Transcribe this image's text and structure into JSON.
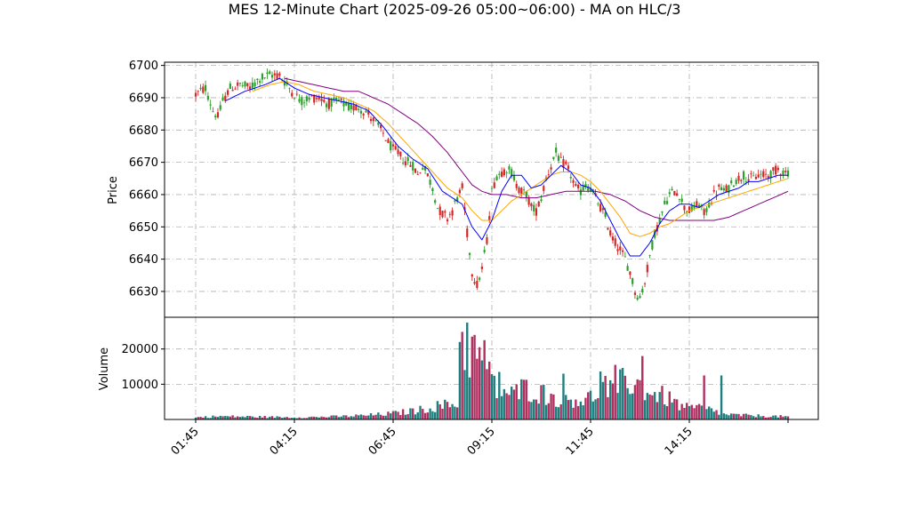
{
  "chart_data": {
    "type": "candlestick",
    "title": "MES 12-Minute Chart (2025-09-26 05:00~06:00) - MA on HLC/3",
    "price_panel": {
      "ylabel": "Price",
      "ylim": [
        6622,
        6701
      ],
      "yticks": [
        6630,
        6640,
        6650,
        6660,
        6670,
        6680,
        6690,
        6700
      ],
      "grid": true
    },
    "volume_panel": {
      "ylabel": "Volume",
      "ylim": [
        0,
        29000
      ],
      "yticks": [
        10000,
        20000
      ],
      "grid": true
    },
    "x_axis": {
      "tick_labels": [
        "01:45",
        "04:15",
        "06:45",
        "09:15",
        "11:45",
        "14:15"
      ],
      "label_rotation": 45
    },
    "colors": {
      "up_candle": "#2ca02c",
      "down_candle": "#d62728",
      "ma_fast": "#0000ff",
      "ma_mid": "#ffa500",
      "ma_slow": "#800080",
      "volume_up": "#1f7f7f",
      "volume_down": "#b03060",
      "grid": "#b0b0b0"
    },
    "price_path": [
      [
        0,
        6691
      ],
      [
        4,
        6693
      ],
      [
        7,
        6686
      ],
      [
        9,
        6684
      ],
      [
        11,
        6689
      ],
      [
        14,
        6693
      ],
      [
        18,
        6694
      ],
      [
        22,
        6693
      ],
      [
        26,
        6696
      ],
      [
        30,
        6697
      ],
      [
        34,
        6697
      ],
      [
        37,
        6694
      ],
      [
        40,
        6691
      ],
      [
        43,
        6689
      ],
      [
        46,
        6690
      ],
      [
        50,
        6690
      ],
      [
        54,
        6688
      ],
      [
        58,
        6689
      ],
      [
        62,
        6687
      ],
      [
        66,
        6687
      ],
      [
        70,
        6685
      ],
      [
        72,
        6683
      ],
      [
        74,
        6681
      ],
      [
        76,
        6679
      ],
      [
        78,
        6676
      ],
      [
        80,
        6674
      ],
      [
        82,
        6673
      ],
      [
        84,
        6671
      ],
      [
        86,
        6670
      ],
      [
        88,
        6669
      ],
      [
        90,
        6666
      ],
      [
        92,
        6669
      ],
      [
        94,
        6666
      ],
      [
        96,
        6662
      ],
      [
        98,
        6656
      ],
      [
        100,
        6654
      ],
      [
        102,
        6653
      ],
      [
        104,
        6655
      ],
      [
        106,
        6659
      ],
      [
        108,
        6662
      ],
      [
        110,
        6648
      ],
      [
        112,
        6636
      ],
      [
        114,
        6632
      ],
      [
        116,
        6637
      ],
      [
        118,
        6646
      ],
      [
        120,
        6661
      ],
      [
        122,
        6666
      ],
      [
        124,
        6667
      ],
      [
        126,
        6668
      ],
      [
        128,
        6667
      ],
      [
        130,
        6663
      ],
      [
        132,
        6661
      ],
      [
        134,
        6660
      ],
      [
        136,
        6656
      ],
      [
        138,
        6655
      ],
      [
        140,
        6659
      ],
      [
        142,
        6665
      ],
      [
        144,
        6669
      ],
      [
        146,
        6673
      ],
      [
        148,
        6670
      ],
      [
        150,
        6669
      ],
      [
        152,
        6666
      ],
      [
        154,
        6662
      ],
      [
        156,
        6661
      ],
      [
        158,
        6663
      ],
      [
        160,
        6662
      ],
      [
        162,
        6659
      ],
      [
        164,
        6656
      ],
      [
        166,
        6653
      ],
      [
        168,
        6648
      ],
      [
        170,
        6645
      ],
      [
        172,
        6643
      ],
      [
        174,
        6640
      ],
      [
        176,
        6636
      ],
      [
        178,
        6630
      ],
      [
        180,
        6628
      ],
      [
        182,
        6633
      ],
      [
        184,
        6641
      ],
      [
        186,
        6648
      ],
      [
        188,
        6652
      ],
      [
        190,
        6657
      ],
      [
        192,
        6660
      ],
      [
        194,
        6661
      ],
      [
        196,
        6660
      ],
      [
        198,
        6656
      ],
      [
        200,
        6655
      ],
      [
        202,
        6656
      ],
      [
        204,
        6657
      ],
      [
        206,
        6654
      ],
      [
        208,
        6657
      ],
      [
        210,
        6660
      ],
      [
        212,
        6662
      ],
      [
        214,
        6661
      ],
      [
        216,
        6662
      ],
      [
        218,
        6664
      ],
      [
        220,
        6665
      ],
      [
        222,
        6666
      ],
      [
        224,
        6665
      ],
      [
        226,
        6665
      ],
      [
        228,
        6666
      ],
      [
        230,
        6666
      ],
      [
        232,
        6666
      ],
      [
        234,
        6667
      ],
      [
        236,
        6668
      ],
      [
        238,
        6667
      ],
      [
        240,
        6667
      ]
    ],
    "ma_fast_path": [
      [
        12,
        6689
      ],
      [
        20,
        6692
      ],
      [
        28,
        6694
      ],
      [
        34,
        6696
      ],
      [
        40,
        6693
      ],
      [
        46,
        6691
      ],
      [
        52,
        6690
      ],
      [
        58,
        6689
      ],
      [
        64,
        6688
      ],
      [
        70,
        6686
      ],
      [
        76,
        6681
      ],
      [
        82,
        6675
      ],
      [
        88,
        6671
      ],
      [
        94,
        6668
      ],
      [
        100,
        6661
      ],
      [
        104,
        6659
      ],
      [
        108,
        6657
      ],
      [
        112,
        6650
      ],
      [
        116,
        6646
      ],
      [
        120,
        6652
      ],
      [
        124,
        6661
      ],
      [
        128,
        6666
      ],
      [
        132,
        6666
      ],
      [
        136,
        6662
      ],
      [
        140,
        6663
      ],
      [
        144,
        6666
      ],
      [
        148,
        6669
      ],
      [
        152,
        6667
      ],
      [
        156,
        6663
      ],
      [
        160,
        6662
      ],
      [
        164,
        6658
      ],
      [
        168,
        6652
      ],
      [
        172,
        6646
      ],
      [
        176,
        6641
      ],
      [
        180,
        6641
      ],
      [
        184,
        6645
      ],
      [
        188,
        6651
      ],
      [
        192,
        6655
      ],
      [
        196,
        6657
      ],
      [
        200,
        6657
      ],
      [
        204,
        6656
      ],
      [
        208,
        6658
      ],
      [
        212,
        6660
      ],
      [
        216,
        6661
      ],
      [
        220,
        6662
      ],
      [
        224,
        6664
      ],
      [
        228,
        6664
      ],
      [
        232,
        6665
      ],
      [
        236,
        6666
      ],
      [
        240,
        6666
      ]
    ],
    "ma_mid_path": [
      [
        23,
        6692
      ],
      [
        30,
        6694
      ],
      [
        36,
        6695
      ],
      [
        42,
        6694
      ],
      [
        48,
        6692
      ],
      [
        54,
        6691
      ],
      [
        60,
        6690
      ],
      [
        66,
        6688
      ],
      [
        72,
        6686
      ],
      [
        78,
        6682
      ],
      [
        84,
        6677
      ],
      [
        90,
        6672
      ],
      [
        96,
        6667
      ],
      [
        102,
        6662
      ],
      [
        108,
        6659
      ],
      [
        112,
        6655
      ],
      [
        116,
        6652
      ],
      [
        120,
        6652
      ],
      [
        124,
        6655
      ],
      [
        128,
        6658
      ],
      [
        132,
        6660
      ],
      [
        136,
        6662
      ],
      [
        140,
        6664
      ],
      [
        144,
        6666
      ],
      [
        148,
        6667
      ],
      [
        152,
        6667
      ],
      [
        156,
        6666
      ],
      [
        160,
        6664
      ],
      [
        164,
        6661
      ],
      [
        168,
        6657
      ],
      [
        172,
        6653
      ],
      [
        176,
        6648
      ],
      [
        180,
        6647
      ],
      [
        184,
        6648
      ],
      [
        188,
        6650
      ],
      [
        192,
        6651
      ],
      [
        196,
        6653
      ],
      [
        200,
        6655
      ],
      [
        204,
        6656
      ],
      [
        208,
        6657
      ],
      [
        212,
        6658
      ],
      [
        216,
        6659
      ],
      [
        220,
        6660
      ],
      [
        224,
        6661
      ],
      [
        228,
        6662
      ],
      [
        232,
        6663
      ],
      [
        236,
        6664
      ],
      [
        240,
        6665
      ]
    ],
    "ma_slow_path": [
      [
        36,
        6696
      ],
      [
        42,
        6695
      ],
      [
        48,
        6694
      ],
      [
        54,
        6693
      ],
      [
        60,
        6692
      ],
      [
        66,
        6692
      ],
      [
        72,
        6690
      ],
      [
        78,
        6688
      ],
      [
        84,
        6685
      ],
      [
        90,
        6682
      ],
      [
        96,
        6678
      ],
      [
        102,
        6673
      ],
      [
        108,
        6667
      ],
      [
        112,
        6663
      ],
      [
        116,
        6661
      ],
      [
        120,
        6660
      ],
      [
        126,
        6660
      ],
      [
        132,
        6659
      ],
      [
        138,
        6659
      ],
      [
        144,
        6660
      ],
      [
        150,
        6661
      ],
      [
        156,
        6661
      ],
      [
        162,
        6661
      ],
      [
        168,
        6660
      ],
      [
        174,
        6658
      ],
      [
        180,
        6655
      ],
      [
        186,
        6653
      ],
      [
        192,
        6652
      ],
      [
        198,
        6652
      ],
      [
        204,
        6652
      ],
      [
        210,
        6652
      ],
      [
        216,
        6653
      ],
      [
        222,
        6655
      ],
      [
        228,
        6657
      ],
      [
        234,
        6659
      ],
      [
        240,
        6661
      ]
    ],
    "volume_profile": [
      [
        0,
        600
      ],
      [
        10,
        900
      ],
      [
        20,
        800
      ],
      [
        30,
        700
      ],
      [
        40,
        600
      ],
      [
        50,
        700
      ],
      [
        60,
        900
      ],
      [
        70,
        1200
      ],
      [
        80,
        1700
      ],
      [
        90,
        2600
      ],
      [
        98,
        3800
      ],
      [
        104,
        4200
      ],
      [
        106,
        4800
      ],
      [
        107,
        22000
      ],
      [
        110,
        20000
      ],
      [
        114,
        17000
      ],
      [
        118,
        13000
      ],
      [
        122,
        8500
      ],
      [
        128,
        7000
      ],
      [
        134,
        9000
      ],
      [
        140,
        7500
      ],
      [
        146,
        6000
      ],
      [
        152,
        6000
      ],
      [
        158,
        5500
      ],
      [
        162,
        7000
      ],
      [
        164,
        11000
      ],
      [
        168,
        8000
      ],
      [
        172,
        10000
      ],
      [
        176,
        11000
      ],
      [
        180,
        9500
      ],
      [
        186,
        7000
      ],
      [
        190,
        6500
      ],
      [
        196,
        4000
      ],
      [
        200,
        3000
      ],
      [
        204,
        3500
      ],
      [
        210,
        2500
      ],
      [
        214,
        1500
      ],
      [
        220,
        1200
      ],
      [
        230,
        1000
      ],
      [
        240,
        800
      ]
    ]
  }
}
